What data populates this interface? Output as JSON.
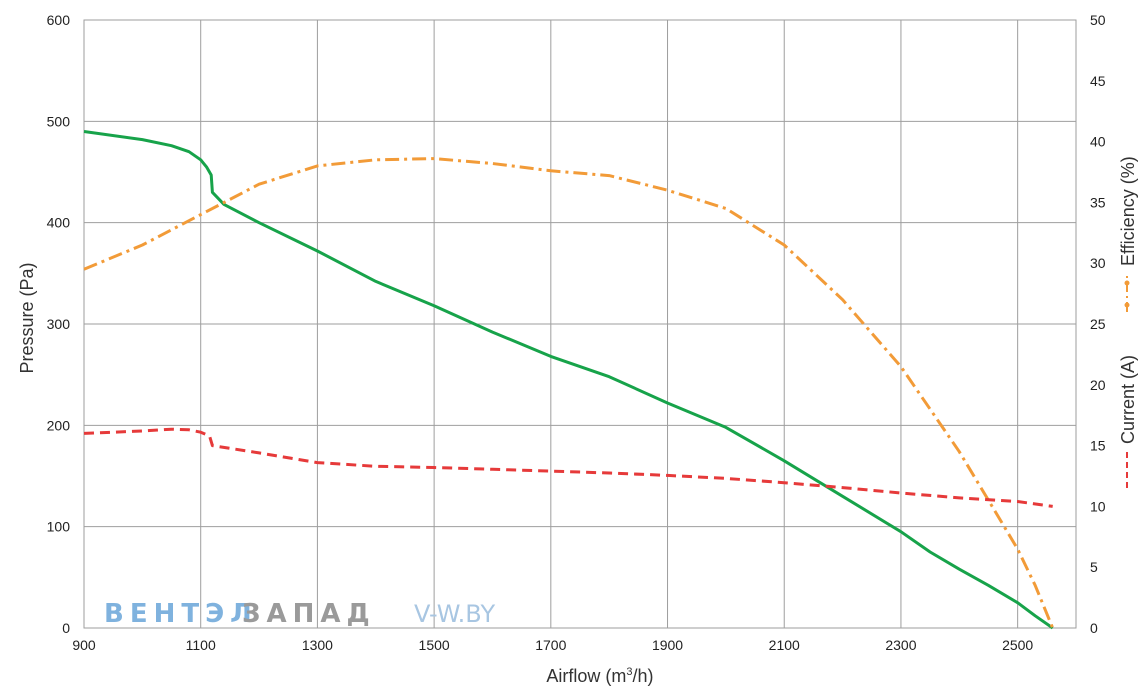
{
  "chart_data": {
    "type": "line",
    "xlabel": "Airflow (m",
    "xlabel_sup": "3",
    "xlabel_tail": "/h)",
    "ylabel_left": "Pressure (Pa)",
    "ylabel_right_top": "Efficiency (%)",
    "ylabel_right_bottom": "Current (A)",
    "xlim": [
      900,
      2600
    ],
    "ylim_left": [
      0,
      600
    ],
    "ylim_right": [
      0,
      50
    ],
    "x_ticks": [
      900,
      1100,
      1300,
      1500,
      1700,
      1900,
      2100,
      2300,
      2500
    ],
    "y_left_ticks": [
      0,
      100,
      200,
      300,
      400,
      500,
      600
    ],
    "y_right_ticks": [
      0,
      5,
      10,
      15,
      20,
      25,
      30,
      35,
      40,
      45,
      50
    ],
    "grid": "vertical and horizontal",
    "watermark": {
      "part1": "ВЕНТЭЛ",
      "part2": "ЗАПАД",
      "part3": "V-W.BY"
    },
    "series": [
      {
        "key": "pressure",
        "axis": "left",
        "color": "#17a34a",
        "style": "solid",
        "points": [
          [
            900,
            490
          ],
          [
            1000,
            482
          ],
          [
            1050,
            476
          ],
          [
            1080,
            470
          ],
          [
            1100,
            462
          ],
          [
            1110,
            455
          ],
          [
            1118,
            447
          ],
          [
            1120,
            430
          ],
          [
            1140,
            418
          ],
          [
            1200,
            400
          ],
          [
            1300,
            372
          ],
          [
            1400,
            342
          ],
          [
            1500,
            318
          ],
          [
            1600,
            292
          ],
          [
            1700,
            268
          ],
          [
            1800,
            248
          ],
          [
            1900,
            222
          ],
          [
            2000,
            198
          ],
          [
            2100,
            165
          ],
          [
            2200,
            130
          ],
          [
            2300,
            95
          ],
          [
            2350,
            75
          ],
          [
            2400,
            58
          ],
          [
            2450,
            42
          ],
          [
            2500,
            25
          ],
          [
            2530,
            12
          ],
          [
            2560,
            0
          ]
        ]
      },
      {
        "key": "efficiency",
        "axis": "right",
        "color": "#f29b38",
        "style": "dashdot",
        "points": [
          [
            900,
            29.5
          ],
          [
            1000,
            31.5
          ],
          [
            1100,
            34
          ],
          [
            1200,
            36.5
          ],
          [
            1300,
            38
          ],
          [
            1400,
            38.5
          ],
          [
            1500,
            38.6
          ],
          [
            1600,
            38.2
          ],
          [
            1700,
            37.6
          ],
          [
            1800,
            37.2
          ],
          [
            1900,
            36
          ],
          [
            2000,
            34.5
          ],
          [
            2100,
            31.5
          ],
          [
            2200,
            27
          ],
          [
            2300,
            21.5
          ],
          [
            2400,
            14.5
          ],
          [
            2450,
            10.5
          ],
          [
            2500,
            6.5
          ],
          [
            2530,
            3.5
          ],
          [
            2560,
            0
          ]
        ]
      },
      {
        "key": "current",
        "axis": "right",
        "color": "#e63a3a",
        "style": "dashed",
        "points": [
          [
            900,
            16
          ],
          [
            1000,
            16.2
          ],
          [
            1050,
            16.35
          ],
          [
            1080,
            16.3
          ],
          [
            1100,
            16.1
          ],
          [
            1115,
            15.8
          ],
          [
            1120,
            15
          ],
          [
            1200,
            14.4
          ],
          [
            1300,
            13.6
          ],
          [
            1400,
            13.3
          ],
          [
            1500,
            13.2
          ],
          [
            1600,
            13.05
          ],
          [
            1700,
            12.9
          ],
          [
            1800,
            12.75
          ],
          [
            1900,
            12.55
          ],
          [
            2000,
            12.3
          ],
          [
            2100,
            11.95
          ],
          [
            2200,
            11.55
          ],
          [
            2300,
            11.1
          ],
          [
            2400,
            10.7
          ],
          [
            2500,
            10.4
          ],
          [
            2560,
            10
          ]
        ]
      }
    ]
  }
}
